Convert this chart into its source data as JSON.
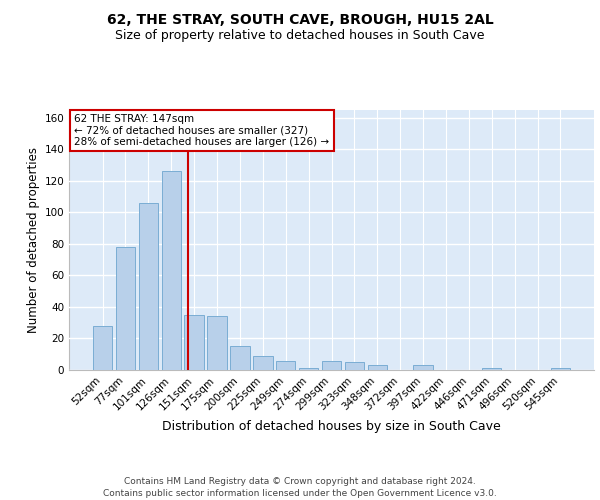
{
  "title": "62, THE STRAY, SOUTH CAVE, BROUGH, HU15 2AL",
  "subtitle": "Size of property relative to detached houses in South Cave",
  "xlabel": "Distribution of detached houses by size in South Cave",
  "ylabel": "Number of detached properties",
  "categories": [
    "52sqm",
    "77sqm",
    "101sqm",
    "126sqm",
    "151sqm",
    "175sqm",
    "200sqm",
    "225sqm",
    "249sqm",
    "274sqm",
    "299sqm",
    "323sqm",
    "348sqm",
    "372sqm",
    "397sqm",
    "422sqm",
    "446sqm",
    "471sqm",
    "496sqm",
    "520sqm",
    "545sqm"
  ],
  "values": [
    28,
    78,
    106,
    126,
    35,
    34,
    15,
    9,
    6,
    1,
    6,
    5,
    3,
    0,
    3,
    0,
    0,
    1,
    0,
    0,
    1
  ],
  "bar_color": "#b8d0ea",
  "bar_edge_color": "#7aadd4",
  "bg_color": "#ddeaf8",
  "grid_color": "#ffffff",
  "vline_color": "#cc0000",
  "vline_x_index": 3.72,
  "annotation_text": "62 THE STRAY: 147sqm\n← 72% of detached houses are smaller (327)\n28% of semi-detached houses are larger (126) →",
  "annotation_box_color": "#ffffff",
  "annotation_box_edge": "#cc0000",
  "footer": "Contains HM Land Registry data © Crown copyright and database right 2024.\nContains public sector information licensed under the Open Government Licence v3.0.",
  "ylim": [
    0,
    165
  ],
  "yticks": [
    0,
    20,
    40,
    60,
    80,
    100,
    120,
    140,
    160
  ],
  "title_fontsize": 10,
  "subtitle_fontsize": 9,
  "xlabel_fontsize": 9,
  "ylabel_fontsize": 8.5,
  "tick_fontsize": 7.5,
  "footer_fontsize": 6.5,
  "ann_fontsize": 7.5
}
